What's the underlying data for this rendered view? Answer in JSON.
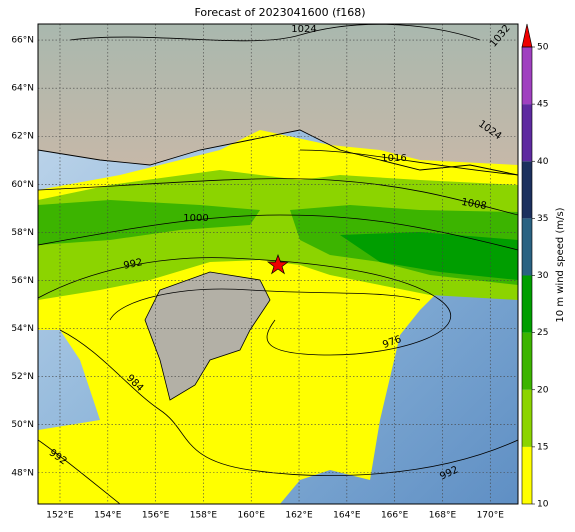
{
  "title": "Forecast of 2023041600 (f168)",
  "map": {
    "lon_range": [
      151.08,
      171.16
    ],
    "lat_range": [
      46.7,
      66.67
    ],
    "lat_ticks": [
      {
        "value": 48,
        "label": "48°N"
      },
      {
        "value": 50,
        "label": "50°N"
      },
      {
        "value": 52,
        "label": "52°N"
      },
      {
        "value": 54,
        "label": "54°N"
      },
      {
        "value": 56,
        "label": "56°N"
      },
      {
        "value": 58,
        "label": "58°N"
      },
      {
        "value": 60,
        "label": "60°N"
      },
      {
        "value": 62,
        "label": "62°N"
      },
      {
        "value": 64,
        "label": "64°N"
      },
      {
        "value": 66,
        "label": "66°N"
      }
    ],
    "lon_ticks": [
      {
        "value": 152,
        "label": "152°E"
      },
      {
        "value": 154,
        "label": "154°E"
      },
      {
        "value": 156,
        "label": "156°E"
      },
      {
        "value": 158,
        "label": "158°E"
      },
      {
        "value": 160,
        "label": "160°E"
      },
      {
        "value": 162,
        "label": "162°E"
      },
      {
        "value": 164,
        "label": "164°E"
      },
      {
        "value": 166,
        "label": "166°E"
      },
      {
        "value": 168,
        "label": "168°E"
      },
      {
        "value": 170,
        "label": "170°E"
      }
    ],
    "contour_labels": [
      "1024",
      "1032",
      "1024",
      "1016",
      "1008",
      "1000",
      "992",
      "976",
      "984",
      "992",
      "992"
    ]
  },
  "colorbar": {
    "label": "10 m wind speed (m/s)",
    "range": [
      10,
      50
    ],
    "ticks": [
      10,
      15,
      20,
      25,
      30,
      35,
      40,
      45,
      50
    ],
    "colors": [
      "#ffff00",
      "#8cd400",
      "#3cb400",
      "#009e00",
      "#2a6282",
      "#1c305e",
      "#5e2aa0",
      "#a040c0"
    ],
    "extend_color": "#ee0000"
  }
}
